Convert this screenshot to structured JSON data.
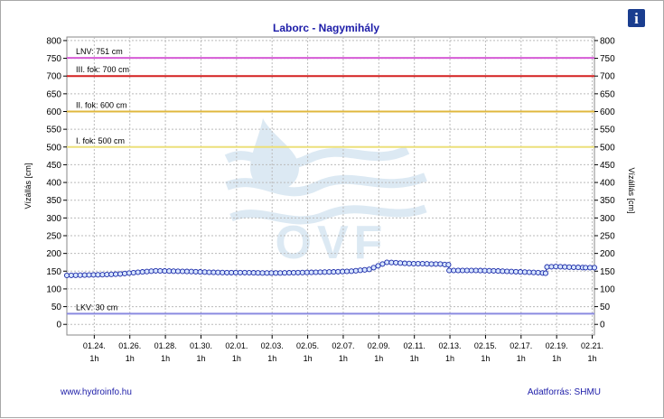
{
  "info_icon": {
    "name": "info-icon",
    "glyph": "i",
    "color": "#1a3d8f"
  },
  "footer": {
    "left": "www.hydroinfo.hu",
    "right": "Adatforrás: SHMU"
  },
  "watermark": {
    "text": "OVF",
    "color": "#cfe0ef"
  },
  "chart_data": {
    "type": "line",
    "title": "Laborc - Nagymihály",
    "ylabel_left": "Vízállás [cm]",
    "ylabel_right": "Vízállás [cm]",
    "ylim": [
      -30,
      810
    ],
    "yticks": [
      0,
      50,
      100,
      150,
      200,
      250,
      300,
      350,
      400,
      450,
      500,
      550,
      600,
      650,
      700,
      750,
      800
    ],
    "x_start": "01.23. 0h",
    "x_span_hours": 712,
    "xtick_hours": [
      37,
      85,
      133,
      181,
      229,
      277,
      325,
      373,
      421,
      469,
      517,
      565,
      613,
      661,
      709
    ],
    "xtick_labels": [
      "01.24.",
      "01.26.",
      "01.28.",
      "01.30.",
      "02.01.",
      "02.03.",
      "02.05.",
      "02.07.",
      "02.09.",
      "02.11.",
      "02.13.",
      "02.15.",
      "02.17.",
      "02.19.",
      "02.21."
    ],
    "xtick_sublabel": "1h",
    "grid": true,
    "reference_lines": [
      {
        "label": "LNV: 751 cm",
        "value": 751,
        "color": "#d65bd6"
      },
      {
        "label": "III. fok: 700 cm",
        "value": 700,
        "color": "#d42020"
      },
      {
        "label": "II. fok: 600 cm",
        "value": 600,
        "color": "#e0b83e"
      },
      {
        "label": "I. fok: 500 cm",
        "value": 500,
        "color": "#ece07a"
      },
      {
        "label": "LKV: 30 cm",
        "value": 30,
        "color": "#8a8ae0"
      }
    ],
    "series": [
      {
        "color": "#1a2aa8",
        "marker_fill": "#d8e6ff",
        "x_hours": [
          0,
          24,
          48,
          72,
          96,
          120,
          144,
          168,
          192,
          216,
          240,
          264,
          288,
          312,
          336,
          360,
          384,
          408,
          432,
          444,
          456,
          468,
          480,
          492,
          504,
          515,
          516,
          528,
          552,
          576,
          600,
          636,
          646,
          648,
          660,
          672,
          684,
          700,
          712
        ],
        "values": [
          138,
          139,
          140,
          142,
          147,
          151,
          150,
          149,
          147,
          146,
          146,
          145,
          145,
          146,
          147,
          148,
          150,
          155,
          175,
          174,
          172,
          171,
          171,
          170,
          170,
          168,
          152,
          152,
          152,
          151,
          149,
          146,
          144,
          162,
          163,
          162,
          161,
          160,
          160
        ]
      }
    ]
  }
}
